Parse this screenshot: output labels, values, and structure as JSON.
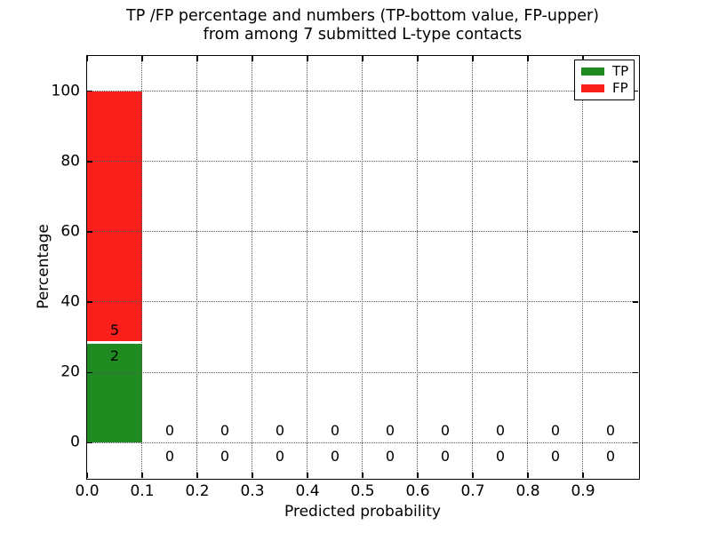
{
  "title": {
    "line1": "TP /FP percentage and numbers (TP-bottom value, FP-upper)",
    "line2": "from among 7 submitted L-type contacts"
  },
  "axes": {
    "xlabel": "Predicted probability",
    "ylabel": "Percentage",
    "xtick_labels": [
      "0.0",
      "0.1",
      "0.2",
      "0.3",
      "0.4",
      "0.5",
      "0.6",
      "0.7",
      "0.8",
      "0.9"
    ],
    "ytick_labels": [
      "0",
      "20",
      "40",
      "60",
      "80",
      "100"
    ]
  },
  "legend": {
    "items": [
      {
        "label": "TP",
        "color": "#208b20"
      },
      {
        "label": "FP",
        "color": "#fb1f1b"
      }
    ]
  },
  "colors": {
    "tp": "#208b20",
    "fp": "#fb1f1b",
    "grid": "#545454",
    "spine": "#000000",
    "background": "#ffffff",
    "segment_divider": "#ffffff"
  },
  "chart_data": {
    "type": "bar",
    "stacked": true,
    "title": "TP /FP percentage and numbers (TP-bottom value, FP-upper)\nfrom among 7 submitted L-type contacts",
    "xlabel": "Predicted probability",
    "ylabel": "Percentage",
    "xlim": [
      0.0,
      1.0
    ],
    "ylim": [
      -10,
      110
    ],
    "xticks": [
      0.0,
      0.1,
      0.2,
      0.3,
      0.4,
      0.5,
      0.6,
      0.7,
      0.8,
      0.9
    ],
    "yticks": [
      0,
      20,
      40,
      60,
      80,
      100
    ],
    "grid": true,
    "grid_linestyle": "dotted",
    "legend_position": "upper right",
    "total_submitted_contacts": 7,
    "bin_width": 0.1,
    "bin_starts": [
      0.0,
      0.1,
      0.2,
      0.3,
      0.4,
      0.5,
      0.6,
      0.7,
      0.8,
      0.9
    ],
    "series": [
      {
        "name": "TP",
        "color": "#208b20",
        "counts": [
          2,
          0,
          0,
          0,
          0,
          0,
          0,
          0,
          0,
          0
        ],
        "values_pct": [
          28.57,
          0,
          0,
          0,
          0,
          0,
          0,
          0,
          0,
          0
        ]
      },
      {
        "name": "FP",
        "color": "#fb1f1b",
        "counts": [
          5,
          0,
          0,
          0,
          0,
          0,
          0,
          0,
          0,
          0
        ],
        "values_pct": [
          71.43,
          0,
          0,
          0,
          0,
          0,
          0,
          0,
          0,
          0
        ]
      }
    ]
  }
}
